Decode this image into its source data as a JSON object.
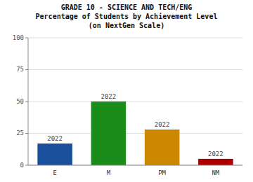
{
  "chart_data": {
    "type": "bar",
    "title": "GRADE 10 - SCIENCE AND TECH/ENG\nPercentage of Students by Achievement Level\n(on NextGen Scale)",
    "categories": [
      "E",
      "M",
      "PM",
      "NM"
    ],
    "values": [
      17,
      50,
      28,
      5
    ],
    "colors": [
      "#1a4f9c",
      "#1a8c1a",
      "#cc8800",
      "#aa0000"
    ],
    "annotations": [
      "2022",
      "2022",
      "2022",
      "2022"
    ],
    "ylim": [
      0,
      100
    ],
    "yticks": [
      0,
      25,
      50,
      75,
      100
    ],
    "grid": true
  }
}
